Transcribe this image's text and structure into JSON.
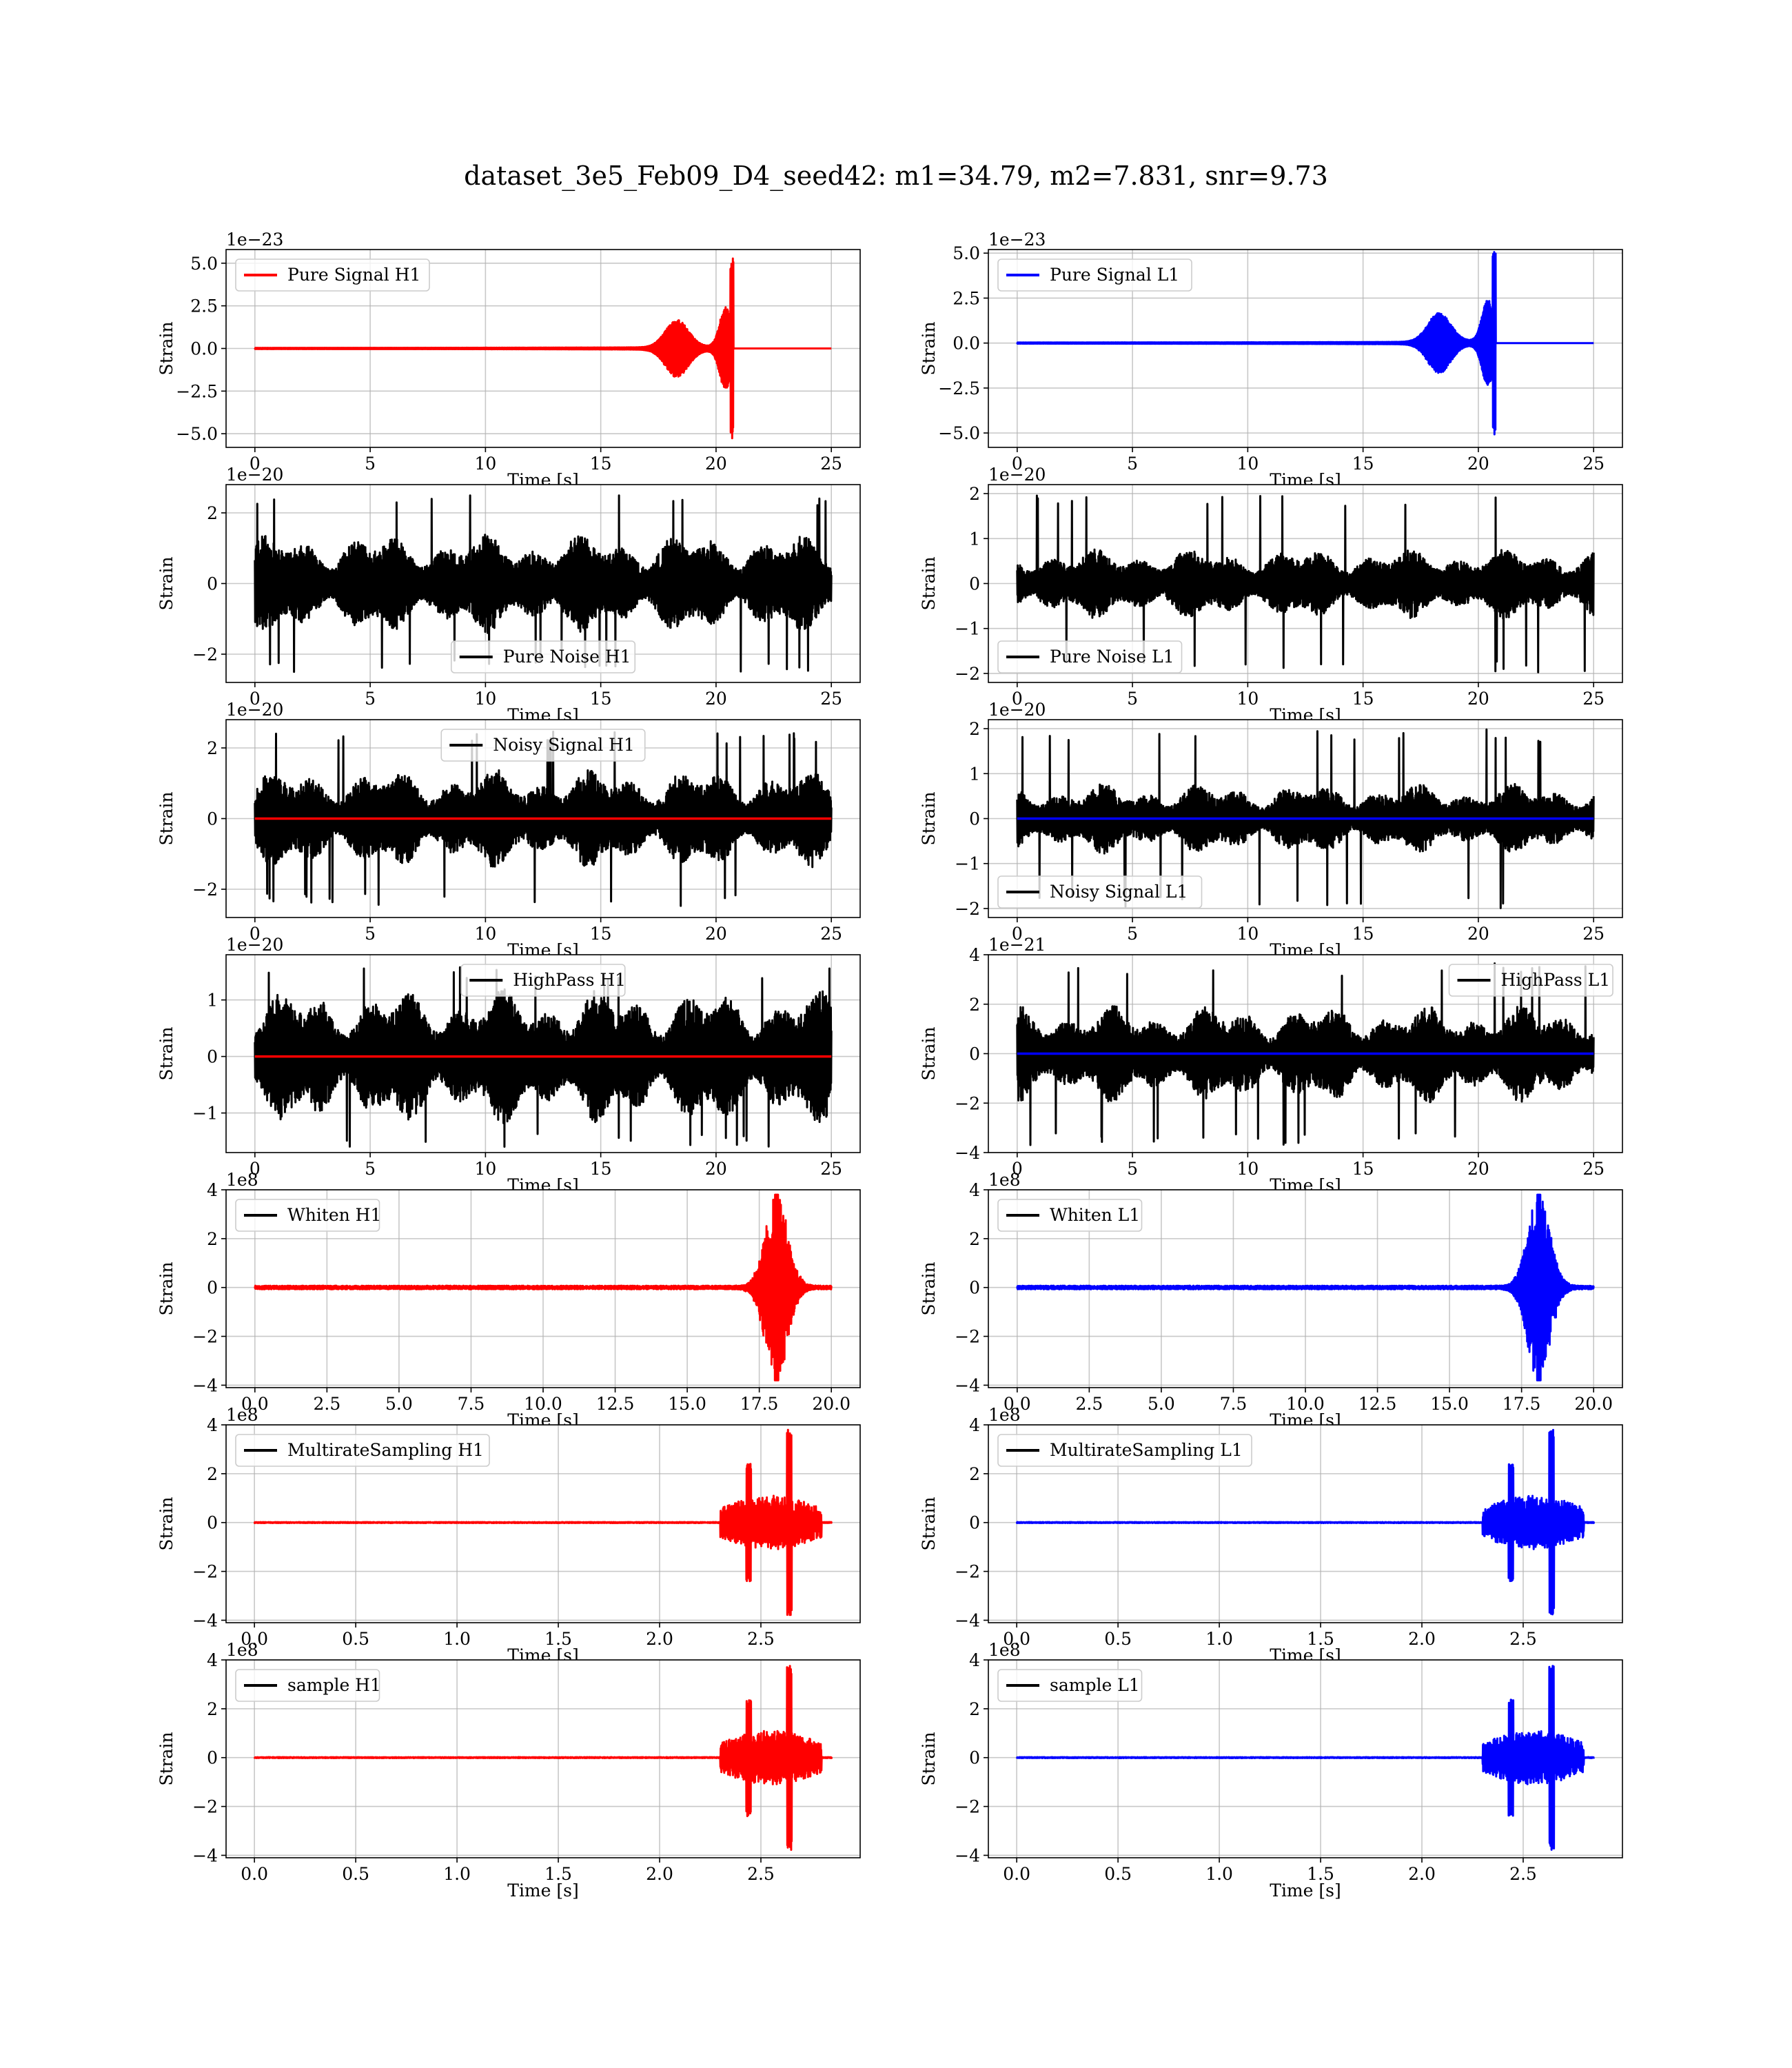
{
  "figure": {
    "suptitle": "dataset_3e5_Feb09_D4_seed42: m1=34.79, m2=7.831, snr=9.73"
  },
  "colors": {
    "h1": "#ff0000",
    "l1": "#0000ff",
    "noise": "#000000"
  },
  "chart_data": [
    {
      "type": "line",
      "panel": "pure-signal-h1",
      "row": 0,
      "col": 0,
      "legend": "Pure Signal H1",
      "legend_loc": "upper left",
      "legend_color": "#ff0000",
      "xlabel": "Time [s]",
      "ylabel": "Strain",
      "offset_text": "1e−23",
      "xlim": [
        -1.25,
        26.25
      ],
      "ylim": [
        -5.8,
        5.8
      ],
      "xticks": [
        0,
        5,
        10,
        15,
        20,
        25
      ],
      "xtick_labels": [
        "0",
        "5",
        "10",
        "15",
        "20",
        "25"
      ],
      "yticks": [
        -5.0,
        -2.5,
        0.0,
        2.5,
        5.0
      ],
      "ytick_labels": [
        "−5.0",
        "−2.5",
        "0.0",
        "2.5",
        "5.0"
      ],
      "grid": true,
      "series": [
        {
          "style": "chirp",
          "color": "#ff0000",
          "x_range": [
            0,
            25
          ],
          "base_amp": 0.25,
          "peak_x": 20.7,
          "peak_amp": 5.3,
          "end_x": 20.75
        }
      ]
    },
    {
      "type": "line",
      "panel": "pure-signal-l1",
      "row": 0,
      "col": 1,
      "legend": "Pure Signal L1",
      "legend_loc": "upper left",
      "legend_color": "#0000ff",
      "xlabel": "Time [s]",
      "ylabel": "Strain",
      "offset_text": "1e−23",
      "xlim": [
        -1.25,
        26.25
      ],
      "ylim": [
        -5.8,
        5.2
      ],
      "xticks": [
        0,
        5,
        10,
        15,
        20,
        25
      ],
      "xtick_labels": [
        "0",
        "5",
        "10",
        "15",
        "20",
        "25"
      ],
      "yticks": [
        -5.0,
        -2.5,
        0.0,
        2.5,
        5.0
      ],
      "ytick_labels": [
        "−5.0",
        "−2.5",
        "0.0",
        "2.5",
        "5.0"
      ],
      "grid": true,
      "series": [
        {
          "style": "chirp",
          "color": "#0000ff",
          "x_range": [
            0,
            25
          ],
          "base_amp": 0.25,
          "peak_x": 20.7,
          "peak_amp": 5.2,
          "end_x": 20.75
        }
      ]
    },
    {
      "type": "line",
      "panel": "pure-noise-h1",
      "row": 1,
      "col": 0,
      "legend": "Pure Noise H1",
      "legend_loc": "lower center",
      "legend_color": "#000000",
      "xlabel": "Time [s]",
      "ylabel": "Strain",
      "offset_text": "1e−20",
      "xlim": [
        -1.25,
        26.25
      ],
      "ylim": [
        -2.8,
        2.8
      ],
      "xticks": [
        0,
        5,
        10,
        15,
        20,
        25
      ],
      "xtick_labels": [
        "0",
        "5",
        "10",
        "15",
        "20",
        "25"
      ],
      "yticks": [
        -2,
        0,
        2
      ],
      "ytick_labels": [
        "−2",
        "0",
        "2"
      ],
      "grid": true,
      "series": [
        {
          "style": "noise",
          "color": "#000000",
          "x_range": [
            0,
            25
          ],
          "amp": 1.35,
          "peak_amp": 2.5
        }
      ]
    },
    {
      "type": "line",
      "panel": "pure-noise-l1",
      "row": 1,
      "col": 1,
      "legend": "Pure Noise L1",
      "legend_loc": "lower left",
      "legend_color": "#000000",
      "xlabel": "Time [s]",
      "ylabel": "Strain",
      "offset_text": "1e−20",
      "xlim": [
        -1.25,
        26.25
      ],
      "ylim": [
        -2.2,
        2.2
      ],
      "xticks": [
        0,
        5,
        10,
        15,
        20,
        25
      ],
      "xtick_labels": [
        "0",
        "5",
        "10",
        "15",
        "20",
        "25"
      ],
      "yticks": [
        -2,
        -1,
        0,
        1,
        2
      ],
      "ytick_labels": [
        "−2",
        "−1",
        "0",
        "1",
        "2"
      ],
      "grid": true,
      "series": [
        {
          "style": "noise",
          "color": "#000000",
          "x_range": [
            0,
            25
          ],
          "amp": 0.75,
          "peak_amp": 2.0
        }
      ]
    },
    {
      "type": "line",
      "panel": "noisy-signal-h1",
      "row": 2,
      "col": 0,
      "legend": "Noisy Signal H1",
      "legend_loc": "upper center",
      "legend_color": "#000000",
      "xlabel": "Time [s]",
      "ylabel": "Strain",
      "offset_text": "1e−20",
      "xlim": [
        -1.25,
        26.25
      ],
      "ylim": [
        -2.8,
        2.8
      ],
      "xticks": [
        0,
        5,
        10,
        15,
        20,
        25
      ],
      "xtick_labels": [
        "0",
        "5",
        "10",
        "15",
        "20",
        "25"
      ],
      "yticks": [
        -2,
        0,
        2
      ],
      "ytick_labels": [
        "−2",
        "0",
        "2"
      ],
      "grid": true,
      "series": [
        {
          "style": "noise",
          "color": "#000000",
          "x_range": [
            0,
            25
          ],
          "amp": 1.35,
          "peak_amp": 2.5
        },
        {
          "style": "flat",
          "color": "#ff0000",
          "x_range": [
            0,
            25
          ],
          "value": 0
        }
      ]
    },
    {
      "type": "line",
      "panel": "noisy-signal-l1",
      "row": 2,
      "col": 1,
      "legend": "Noisy Signal L1",
      "legend_loc": "lower left",
      "legend_color": "#000000",
      "xlabel": "Time [s]",
      "ylabel": "Strain",
      "offset_text": "1e−20",
      "xlim": [
        -1.25,
        26.25
      ],
      "ylim": [
        -2.2,
        2.2
      ],
      "xticks": [
        0,
        5,
        10,
        15,
        20,
        25
      ],
      "xtick_labels": [
        "0",
        "5",
        "10",
        "15",
        "20",
        "25"
      ],
      "yticks": [
        -2,
        -1,
        0,
        1,
        2
      ],
      "ytick_labels": [
        "−2",
        "−1",
        "0",
        "1",
        "2"
      ],
      "grid": true,
      "series": [
        {
          "style": "noise",
          "color": "#000000",
          "x_range": [
            0,
            25
          ],
          "amp": 0.75,
          "peak_amp": 2.0
        },
        {
          "style": "flat",
          "color": "#0000ff",
          "x_range": [
            0,
            25
          ],
          "value": 0
        }
      ]
    },
    {
      "type": "line",
      "panel": "highpass-h1",
      "row": 3,
      "col": 0,
      "legend": "HighPass H1",
      "legend_loc": "upper center",
      "legend_color": "#000000",
      "xlabel": "Time [s]",
      "ylabel": "Strain",
      "offset_text": "1e−20",
      "xlim": [
        -1.25,
        26.25
      ],
      "ylim": [
        -1.7,
        1.8
      ],
      "xticks": [
        0,
        5,
        10,
        15,
        20,
        25
      ],
      "xtick_labels": [
        "0",
        "5",
        "10",
        "15",
        "20",
        "25"
      ],
      "yticks": [
        -1,
        0,
        1
      ],
      "ytick_labels": [
        "−1",
        "0",
        "1"
      ],
      "grid": true,
      "series": [
        {
          "style": "noise",
          "color": "#000000",
          "x_range": [
            0,
            25
          ],
          "amp": 1.15,
          "peak_amp": 1.6
        },
        {
          "style": "flat",
          "color": "#ff0000",
          "x_range": [
            0,
            25
          ],
          "value": 0
        }
      ]
    },
    {
      "type": "line",
      "panel": "highpass-l1",
      "row": 3,
      "col": 1,
      "legend": "HighPass L1",
      "legend_loc": "upper right",
      "legend_color": "#000000",
      "xlabel": "Time [s]",
      "ylabel": "Strain",
      "offset_text": "1e−21",
      "xlim": [
        -1.25,
        26.25
      ],
      "ylim": [
        -4.0,
        4.0
      ],
      "xticks": [
        0,
        5,
        10,
        15,
        20,
        25
      ],
      "xtick_labels": [
        "0",
        "5",
        "10",
        "15",
        "20",
        "25"
      ],
      "yticks": [
        -4,
        -2,
        0,
        2,
        4
      ],
      "ytick_labels": [
        "−4",
        "−2",
        "0",
        "2",
        "4"
      ],
      "grid": true,
      "series": [
        {
          "style": "noise",
          "color": "#000000",
          "x_range": [
            0,
            25
          ],
          "amp": 1.9,
          "peak_amp": 3.7
        },
        {
          "style": "flat",
          "color": "#0000ff",
          "x_range": [
            0,
            25
          ],
          "value": 0
        }
      ]
    },
    {
      "type": "line",
      "panel": "whiten-h1",
      "row": 4,
      "col": 0,
      "legend": "Whiten H1",
      "legend_loc": "upper left",
      "legend_color": "#000000",
      "xlabel": "Time [s]",
      "ylabel": "Strain",
      "offset_text": "1e8",
      "xlim": [
        -1.0,
        21.0
      ],
      "ylim": [
        -4.1,
        4.0
      ],
      "xticks": [
        0.0,
        2.5,
        5.0,
        7.5,
        10.0,
        12.5,
        15.0,
        17.5,
        20.0
      ],
      "xtick_labels": [
        "0.0",
        "2.5",
        "5.0",
        "7.5",
        "10.0",
        "12.5",
        "15.0",
        "17.5",
        "20.0"
      ],
      "yticks": [
        -4,
        -2,
        0,
        2,
        4
      ],
      "ytick_labels": [
        "−4",
        "−2",
        "0",
        "2",
        "4"
      ],
      "grid": true,
      "series": [
        {
          "style": "burst",
          "color": "#ff0000",
          "x_range": [
            0,
            20
          ],
          "center": 18.1,
          "width": 0.55,
          "peak_amp": 3.8,
          "base_amp": 0.05
        }
      ]
    },
    {
      "type": "line",
      "panel": "whiten-l1",
      "row": 4,
      "col": 1,
      "legend": "Whiten L1",
      "legend_loc": "upper left",
      "legend_color": "#000000",
      "xlabel": "Time [s]",
      "ylabel": "Strain",
      "offset_text": "1e8",
      "xlim": [
        -1.0,
        21.0
      ],
      "ylim": [
        -4.1,
        4.0
      ],
      "xticks": [
        0.0,
        2.5,
        5.0,
        7.5,
        10.0,
        12.5,
        15.0,
        17.5,
        20.0
      ],
      "xtick_labels": [
        "0.0",
        "2.5",
        "5.0",
        "7.5",
        "10.0",
        "12.5",
        "15.0",
        "17.5",
        "20.0"
      ],
      "yticks": [
        -4,
        -2,
        0,
        2,
        4
      ],
      "ytick_labels": [
        "−4",
        "−2",
        "0",
        "2",
        "4"
      ],
      "grid": true,
      "series": [
        {
          "style": "burst",
          "color": "#0000ff",
          "x_range": [
            0,
            20
          ],
          "center": 18.1,
          "width": 0.55,
          "peak_amp": 3.8,
          "base_amp": 0.05
        }
      ]
    },
    {
      "type": "line",
      "panel": "multiratesampling-h1",
      "row": 5,
      "col": 0,
      "legend": "MultirateSampling H1",
      "legend_loc": "upper left",
      "legend_color": "#000000",
      "xlabel": "Time [s]",
      "ylabel": "Strain",
      "offset_text": "1e8",
      "xlim": [
        -0.14,
        2.99
      ],
      "ylim": [
        -4.1,
        4.0
      ],
      "xticks": [
        0.0,
        0.5,
        1.0,
        1.5,
        2.0,
        2.5
      ],
      "xtick_labels": [
        "0.0",
        "0.5",
        "1.0",
        "1.5",
        "2.0",
        "2.5"
      ],
      "yticks": [
        -4,
        -2,
        0,
        2,
        4
      ],
      "ytick_labels": [
        "−4",
        "−2",
        "0",
        "2",
        "4"
      ],
      "grid": true,
      "series": [
        {
          "style": "multirate",
          "color": "#ff0000",
          "x_range": [
            0,
            2.85
          ],
          "onset": 2.3,
          "end": 2.8,
          "amp": 1.1,
          "spikes": [
            [
              2.44,
              2.4
            ],
            [
              2.64,
              3.8
            ]
          ]
        }
      ]
    },
    {
      "type": "line",
      "panel": "multiratesampling-l1",
      "row": 5,
      "col": 1,
      "legend": "MultirateSampling L1",
      "legend_loc": "upper left",
      "legend_color": "#000000",
      "xlabel": "Time [s]",
      "ylabel": "Strain",
      "offset_text": "1e8",
      "xlim": [
        -0.14,
        2.99
      ],
      "ylim": [
        -4.1,
        4.0
      ],
      "xticks": [
        0.0,
        0.5,
        1.0,
        1.5,
        2.0,
        2.5
      ],
      "xtick_labels": [
        "0.0",
        "0.5",
        "1.0",
        "1.5",
        "2.0",
        "2.5"
      ],
      "yticks": [
        -4,
        -2,
        0,
        2,
        4
      ],
      "ytick_labels": [
        "−4",
        "−2",
        "0",
        "2",
        "4"
      ],
      "grid": true,
      "series": [
        {
          "style": "multirate",
          "color": "#0000ff",
          "x_range": [
            0,
            2.85
          ],
          "onset": 2.3,
          "end": 2.8,
          "amp": 1.1,
          "spikes": [
            [
              2.44,
              2.4
            ],
            [
              2.64,
              3.8
            ]
          ]
        }
      ]
    },
    {
      "type": "line",
      "panel": "sample-h1",
      "row": 6,
      "col": 0,
      "legend": "sample H1",
      "legend_loc": "upper left",
      "legend_color": "#000000",
      "xlabel": "Time [s]",
      "ylabel": "Strain",
      "offset_text": "1e8",
      "xlim": [
        -0.14,
        2.99
      ],
      "ylim": [
        -4.1,
        4.0
      ],
      "xticks": [
        0.0,
        0.5,
        1.0,
        1.5,
        2.0,
        2.5
      ],
      "xtick_labels": [
        "0.0",
        "0.5",
        "1.0",
        "1.5",
        "2.0",
        "2.5"
      ],
      "yticks": [
        -4,
        -2,
        0,
        2,
        4
      ],
      "ytick_labels": [
        "−4",
        "−2",
        "0",
        "2",
        "4"
      ],
      "grid": true,
      "series": [
        {
          "style": "multirate",
          "color": "#ff0000",
          "x_range": [
            0,
            2.85
          ],
          "onset": 2.3,
          "end": 2.8,
          "amp": 1.1,
          "spikes": [
            [
              2.44,
              2.4
            ],
            [
              2.64,
              3.8
            ]
          ]
        }
      ]
    },
    {
      "type": "line",
      "panel": "sample-l1",
      "row": 6,
      "col": 1,
      "legend": "sample L1",
      "legend_loc": "upper left",
      "legend_color": "#000000",
      "xlabel": "Time [s]",
      "ylabel": "Strain",
      "offset_text": "1e8",
      "xlim": [
        -0.14,
        2.99
      ],
      "ylim": [
        -4.1,
        4.0
      ],
      "xticks": [
        0.0,
        0.5,
        1.0,
        1.5,
        2.0,
        2.5
      ],
      "xtick_labels": [
        "0.0",
        "0.5",
        "1.0",
        "1.5",
        "2.0",
        "2.5"
      ],
      "yticks": [
        -4,
        -2,
        0,
        2,
        4
      ],
      "ytick_labels": [
        "−4",
        "−2",
        "0",
        "2",
        "4"
      ],
      "grid": true,
      "series": [
        {
          "style": "multirate",
          "color": "#0000ff",
          "x_range": [
            0,
            2.85
          ],
          "onset": 2.3,
          "end": 2.8,
          "amp": 1.1,
          "spikes": [
            [
              2.44,
              2.4
            ],
            [
              2.64,
              3.8
            ]
          ]
        }
      ]
    }
  ]
}
